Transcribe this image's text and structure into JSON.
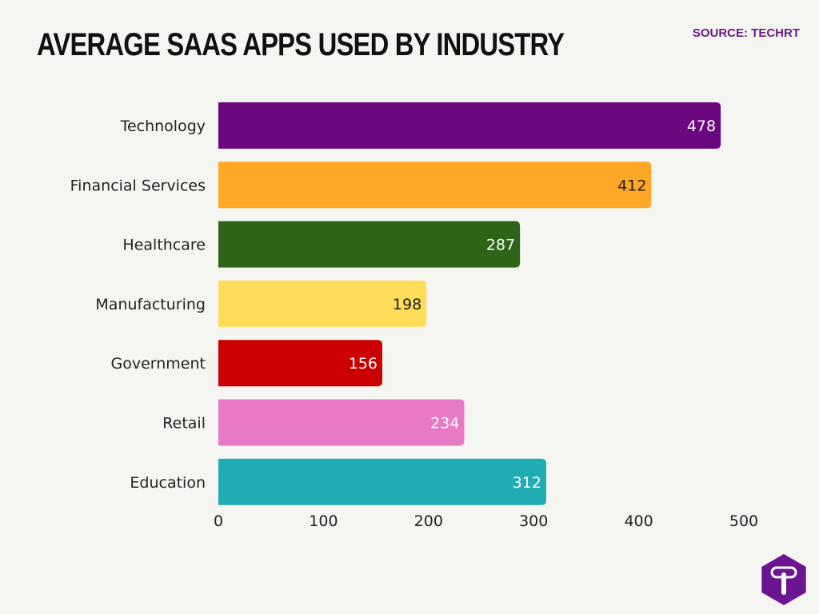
{
  "chart_data": {
    "type": "bar",
    "orientation": "horizontal",
    "title": "AVERAGE SAAS APPS USED BY INDUSTRY",
    "source": "SOURCE: TECHRT",
    "categories": [
      "Technology",
      "Financial Services",
      "Healthcare",
      "Manufacturing",
      "Government",
      "Retail",
      "Education"
    ],
    "values": [
      478,
      412,
      287,
      198,
      156,
      234,
      312
    ],
    "colors": [
      "#6b067f",
      "#ffa726",
      "#2e6418",
      "#ffdc5a",
      "#cc0000",
      "#e879c5",
      "#1fadb3"
    ],
    "label_colors": [
      "#ffffff",
      "#222222",
      "#ffffff",
      "#222222",
      "#ffffff",
      "#ffffff",
      "#ffffff"
    ],
    "xlim": [
      0,
      500
    ],
    "xticks": [
      0,
      100,
      200,
      300,
      400,
      500
    ],
    "grid": false,
    "data_labels": true
  },
  "logo": {
    "letter": "T",
    "color": "#6b1590",
    "icon": "hexagon-t-logo"
  }
}
